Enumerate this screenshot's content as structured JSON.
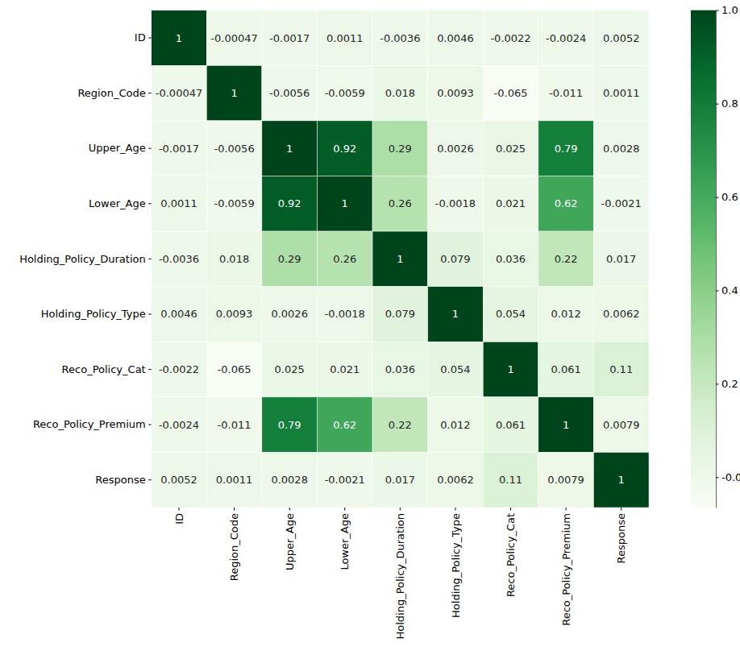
{
  "chart_data": {
    "type": "heatmap",
    "x_labels": [
      "ID",
      "Region_Code",
      "Upper_Age",
      "Lower_Age",
      "Holding_Policy_Duration",
      "Holding_Policy_Type",
      "Reco_Policy_Cat",
      "Reco_Policy_Premium",
      "Response"
    ],
    "y_labels": [
      "ID",
      "Region_Code",
      "Upper_Age",
      "Lower_Age",
      "Holding_Policy_Duration",
      "Holding_Policy_Type",
      "Reco_Policy_Cat",
      "Reco_Policy_Premium",
      "Response"
    ],
    "cells": [
      [
        1,
        -0.00047,
        -0.0017,
        0.0011,
        -0.0036,
        0.0046,
        -0.0022,
        -0.0024,
        0.0052
      ],
      [
        -0.00047,
        1,
        -0.0056,
        -0.0059,
        0.018,
        0.0093,
        -0.065,
        -0.011,
        0.0011
      ],
      [
        -0.0017,
        -0.0056,
        1,
        0.92,
        0.29,
        0.0026,
        0.025,
        0.79,
        0.0028
      ],
      [
        0.0011,
        -0.0059,
        0.92,
        1,
        0.26,
        -0.0018,
        0.021,
        0.62,
        -0.0021
      ],
      [
        -0.0036,
        0.018,
        0.29,
        0.26,
        1,
        0.079,
        0.036,
        0.22,
        0.017
      ],
      [
        0.0046,
        0.0093,
        0.0026,
        -0.0018,
        0.079,
        1,
        0.054,
        0.012,
        0.0062
      ],
      [
        -0.0022,
        -0.065,
        0.025,
        0.021,
        0.036,
        0.054,
        1,
        0.061,
        0.11
      ],
      [
        -0.0024,
        -0.011,
        0.79,
        0.62,
        0.22,
        0.012,
        0.061,
        1,
        0.0079
      ],
      [
        0.0052,
        0.0011,
        0.0028,
        -0.0021,
        0.017,
        0.0062,
        0.11,
        0.0079,
        1
      ]
    ],
    "data_labels": true,
    "color": "Greens",
    "colorbar_range": [
      -0.065,
      1
    ],
    "colorbar_ticks": [
      {
        "value": 0,
        "label": "-0.0"
      },
      0.2,
      0.4,
      0.6,
      0.8,
      {
        "value": 1,
        "label": "1.0"
      }
    ]
  }
}
